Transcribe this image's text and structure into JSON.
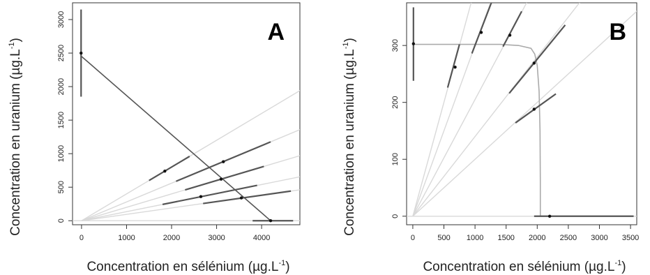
{
  "chart_data": [
    {
      "type": "scatter",
      "panel_label": "A",
      "xlabel": "Concentration en sélénium (µg.L",
      "xlabel_sup": "-1",
      "xlabel_close": ")",
      "ylabel": "Concentration en uranium (µg.L",
      "ylabel_sup": "-1",
      "ylabel_close": ")",
      "xlim": [
        -200,
        4850
      ],
      "ylim": [
        -60,
        3250
      ],
      "xticks": [
        0,
        1000,
        2000,
        3000,
        4000
      ],
      "yticks": [
        0,
        500,
        1000,
        1500,
        2000,
        2500,
        3000
      ],
      "grid": false,
      "colors": {
        "ray": "#d9d9d9",
        "segment": "#555555",
        "fit": "#555555",
        "point": "#111111"
      },
      "rays": [
        {
          "slope": 0.4
        },
        {
          "slope": 0.28
        },
        {
          "slope": 0.2
        },
        {
          "slope": 0.135
        },
        {
          "slope": 0.095
        }
      ],
      "segments": [
        {
          "x": [
            1500,
            2400
          ],
          "y": [
            600,
            960
          ]
        },
        {
          "x": [
            2100,
            4200
          ],
          "y": [
            588,
            1176
          ]
        },
        {
          "x": [
            2300,
            4050
          ],
          "y": [
            460,
            810
          ]
        },
        {
          "x": [
            1800,
            3900
          ],
          "y": [
            243,
            527
          ]
        },
        {
          "x": [
            2700,
            4650
          ],
          "y": [
            257,
            442
          ]
        },
        {
          "x": [
            -10,
            -10
          ],
          "y": [
            1850,
            3150
          ]
        },
        {
          "x": [
            3800,
            4700
          ],
          "y": [
            0,
            0
          ]
        }
      ],
      "fit_line": {
        "x": [
          0,
          4200
        ],
        "y": [
          2450,
          0
        ]
      },
      "points": [
        {
          "x": 1850,
          "y": 740
        },
        {
          "x": 3150,
          "y": 880
        },
        {
          "x": 3100,
          "y": 620
        },
        {
          "x": 2650,
          "y": 360
        },
        {
          "x": 3550,
          "y": 340
        },
        {
          "x": -10,
          "y": 2500
        },
        {
          "x": 4200,
          "y": 0
        }
      ]
    },
    {
      "type": "scatter",
      "panel_label": "B",
      "xlabel": "Concentration en sélénium (µg.L",
      "xlabel_sup": "-1",
      "xlabel_close": ")",
      "ylabel": "Concentration en uranium (µg.L",
      "ylabel_sup": "-1",
      "ylabel_close": ")",
      "xlim": [
        -100,
        3600
      ],
      "ylim": [
        -15,
        375
      ],
      "xticks": [
        0,
        500,
        1000,
        1500,
        2000,
        2500,
        3000,
        3500
      ],
      "yticks": [
        0,
        100,
        200,
        300
      ],
      "grid": false,
      "colors": {
        "ray": "#d9d9d9",
        "segment": "#555555",
        "fit": "#aaaaaa",
        "point": "#111111"
      },
      "rays": [
        {
          "slope": 0.4
        },
        {
          "slope": 0.3
        },
        {
          "slope": 0.205
        },
        {
          "slope": 0.14
        },
        {
          "slope": 0.1
        }
      ],
      "segments": [
        {
          "x": [
            560,
            750
          ],
          "y": [
            226,
            302
          ]
        },
        {
          "x": [
            950,
            1280
          ],
          "y": [
            286,
            380
          ]
        },
        {
          "x": [
            1450,
            1750
          ],
          "y": [
            298,
            360
          ]
        },
        {
          "x": [
            1550,
            2450
          ],
          "y": [
            216,
            336
          ]
        },
        {
          "x": [
            1650,
            2300
          ],
          "y": [
            164,
            215
          ]
        },
        {
          "x": [
            10,
            10
          ],
          "y": [
            238,
            367
          ]
        },
        {
          "x": [
            1950,
            3550
          ],
          "y": [
            0,
            0
          ]
        }
      ],
      "fit_curve": {
        "x": [
          0,
          1400,
          1700,
          1900,
          1960,
          2000,
          2030,
          2045,
          2050,
          2050
        ],
        "y": [
          302,
          302,
          300,
          295,
          285,
          265,
          220,
          150,
          60,
          0
        ]
      },
      "points": [
        {
          "x": 680,
          "y": 262
        },
        {
          "x": 1100,
          "y": 323
        },
        {
          "x": 1560,
          "y": 318
        },
        {
          "x": 1950,
          "y": 269
        },
        {
          "x": 1950,
          "y": 188
        },
        {
          "x": 10,
          "y": 303
        },
        {
          "x": 2200,
          "y": 0
        }
      ]
    }
  ]
}
